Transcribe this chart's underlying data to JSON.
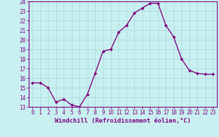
{
  "x": [
    0,
    1,
    2,
    3,
    4,
    5,
    6,
    7,
    8,
    9,
    10,
    11,
    12,
    13,
    14,
    15,
    16,
    17,
    18,
    19,
    20,
    21,
    22,
    23
  ],
  "y": [
    15.5,
    15.5,
    15.0,
    13.5,
    13.8,
    13.2,
    13.0,
    14.3,
    16.5,
    18.8,
    19.0,
    20.8,
    21.5,
    22.8,
    23.3,
    23.8,
    23.8,
    21.5,
    20.3,
    18.0,
    16.8,
    16.5,
    16.4,
    16.4
  ],
  "line_color": "#800080",
  "marker": "D",
  "marker_size": 2.0,
  "bg_color": "#c8f0f0",
  "grid_color": "#b0d8d8",
  "ylim": [
    13,
    24
  ],
  "xlim_min": -0.5,
  "xlim_max": 23.5,
  "yticks": [
    13,
    14,
    15,
    16,
    17,
    18,
    19,
    20,
    21,
    22,
    23,
    24
  ],
  "xticks": [
    0,
    1,
    2,
    3,
    4,
    5,
    6,
    7,
    8,
    9,
    10,
    11,
    12,
    13,
    14,
    15,
    16,
    17,
    18,
    19,
    20,
    21,
    22,
    23
  ],
  "axis_label_color": "#800080",
  "tick_label_color": "#800080",
  "spine_color": "#800080",
  "xlabel": "Windchill (Refroidissement éolien,°C)",
  "xlabel_fontsize": 6.5,
  "tick_fontsize": 5.5,
  "linewidth": 1.0
}
